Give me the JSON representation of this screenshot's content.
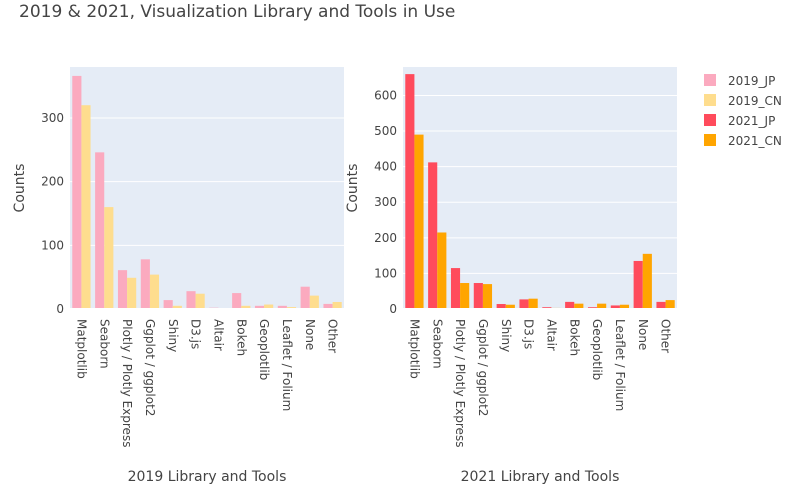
{
  "title": "2019 & 2021, Visualization Library and Tools in Use",
  "legend": [
    {
      "name": "2019_JP",
      "color": "#fbaabf"
    },
    {
      "name": "2019_CN",
      "color": "#fedd8e"
    },
    {
      "name": "2021_JP",
      "color": "#ff4b5c"
    },
    {
      "name": "2021_CN",
      "color": "#ffa500"
    }
  ],
  "chart_data": [
    {
      "type": "bar",
      "xlabel": "2019 Library and Tools",
      "ylabel": "Counts",
      "ylim": [
        0,
        380
      ],
      "yticks": [
        0,
        100,
        200,
        300
      ],
      "grid": true,
      "legend_position": "right",
      "categories": [
        "Matplotlib",
        "Seaborn",
        "Plotly / Plotly Express",
        "Ggplot / ggplot2",
        "Shiny",
        "D3.js",
        "Altair",
        "Bokeh",
        "Geoplotlib",
        "Leaflet / Folium",
        "None",
        "Other"
      ],
      "series": [
        {
          "name": "2019_JP",
          "color": "#fbaabf",
          "values": [
            366,
            246,
            61,
            78,
            14,
            28,
            2,
            25,
            5,
            5,
            35,
            8
          ]
        },
        {
          "name": "2019_CN",
          "color": "#fedd8e",
          "values": [
            320,
            160,
            49,
            54,
            5,
            24,
            1,
            5,
            7,
            3,
            21,
            11
          ]
        }
      ]
    },
    {
      "type": "bar",
      "xlabel": "2021 Library and Tools",
      "ylabel": "Counts",
      "ylim": [
        0,
        680
      ],
      "yticks": [
        0,
        100,
        200,
        300,
        400,
        500,
        600
      ],
      "grid": true,
      "legend_position": "right",
      "categories": [
        "Matplotlib",
        "Seaborn",
        "Plotly / Plotly Express",
        "Ggplot / ggplot2",
        "Shiny",
        "D3.js",
        "Altair",
        "Bokeh",
        "Geoplotlib",
        "Leaflet / Folium",
        "None",
        "Other"
      ],
      "series": [
        {
          "name": "2021_JP",
          "color": "#ff4b5c",
          "values": [
            660,
            412,
            115,
            73,
            14,
            27,
            5,
            20,
            5,
            10,
            135,
            20
          ]
        },
        {
          "name": "2021_CN",
          "color": "#ffa500",
          "values": [
            490,
            215,
            73,
            70,
            12,
            29,
            3,
            15,
            15,
            12,
            155,
            25
          ]
        }
      ]
    }
  ]
}
